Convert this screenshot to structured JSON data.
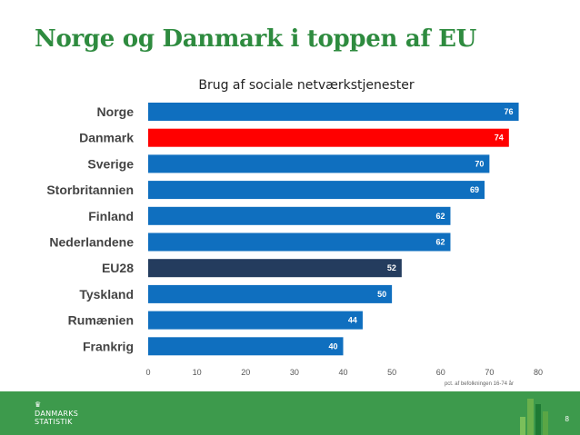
{
  "slide": {
    "title": "Norge og Danmark i toppen af EU",
    "page_number": "8"
  },
  "footer": {
    "logo_line1": "DANMARKS",
    "logo_line2": "STATISTIK",
    "logo_symbol": "crown-icon"
  },
  "colors": {
    "title": "#2e8b3f",
    "bar_default": "#0f6fbf",
    "bar_highlight": "#ff0000",
    "bar_eu": "#243c5e",
    "footer": "#3d9a4c"
  },
  "chart_data": {
    "type": "bar",
    "orientation": "horizontal",
    "title": "Brug af sociale netværkstjenester",
    "categories": [
      "Norge",
      "Danmark",
      "Sverige",
      "Storbritannien",
      "Finland",
      "Nederlandene",
      "EU28",
      "Tyskland",
      "Rumænien",
      "Frankrig"
    ],
    "values": [
      76,
      74,
      70,
      69,
      62,
      62,
      52,
      50,
      44,
      40
    ],
    "highlight": {
      "Danmark": "bar_highlight",
      "EU28": "bar_eu"
    },
    "xlim": [
      0,
      80
    ],
    "xticks": [
      0,
      10,
      20,
      30,
      40,
      50,
      60,
      70,
      80
    ],
    "xlabel": "pct. af befolkningen 16-74 år",
    "grid": false,
    "legend": "none"
  }
}
